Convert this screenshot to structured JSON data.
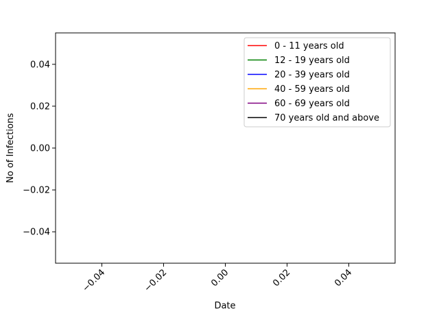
{
  "chart_data": {
    "type": "line",
    "title": "",
    "xlabel": "Date",
    "ylabel": "No of Infections",
    "xlim": [
      -0.055,
      0.055
    ],
    "ylim": [
      -0.055,
      0.055
    ],
    "x_ticks": [
      -0.04,
      -0.02,
      0.0,
      0.02,
      0.04
    ],
    "x_tick_labels": [
      "−0.04",
      "−0.02",
      "0.00",
      "0.02",
      "0.04"
    ],
    "y_ticks": [
      -0.04,
      -0.02,
      0.0,
      0.02,
      0.04
    ],
    "y_tick_labels": [
      "−0.04",
      "−0.02",
      "0.00",
      "0.02",
      "0.04"
    ],
    "grid": false,
    "legend_position": "top-right",
    "series": [
      {
        "name": "0 - 11 years old",
        "color": "#ff0000",
        "x": [],
        "y": []
      },
      {
        "name": "12 - 19 years old",
        "color": "#008000",
        "x": [],
        "y": []
      },
      {
        "name": "20 - 39 years old",
        "color": "#0000ff",
        "x": [],
        "y": []
      },
      {
        "name": "40 - 59 years old",
        "color": "#ffa500",
        "x": [],
        "y": []
      },
      {
        "name": "60 - 69 years old",
        "color": "#800080",
        "x": [],
        "y": []
      },
      {
        "name": "70 years old and above",
        "color": "#000000",
        "x": [],
        "y": []
      }
    ]
  }
}
